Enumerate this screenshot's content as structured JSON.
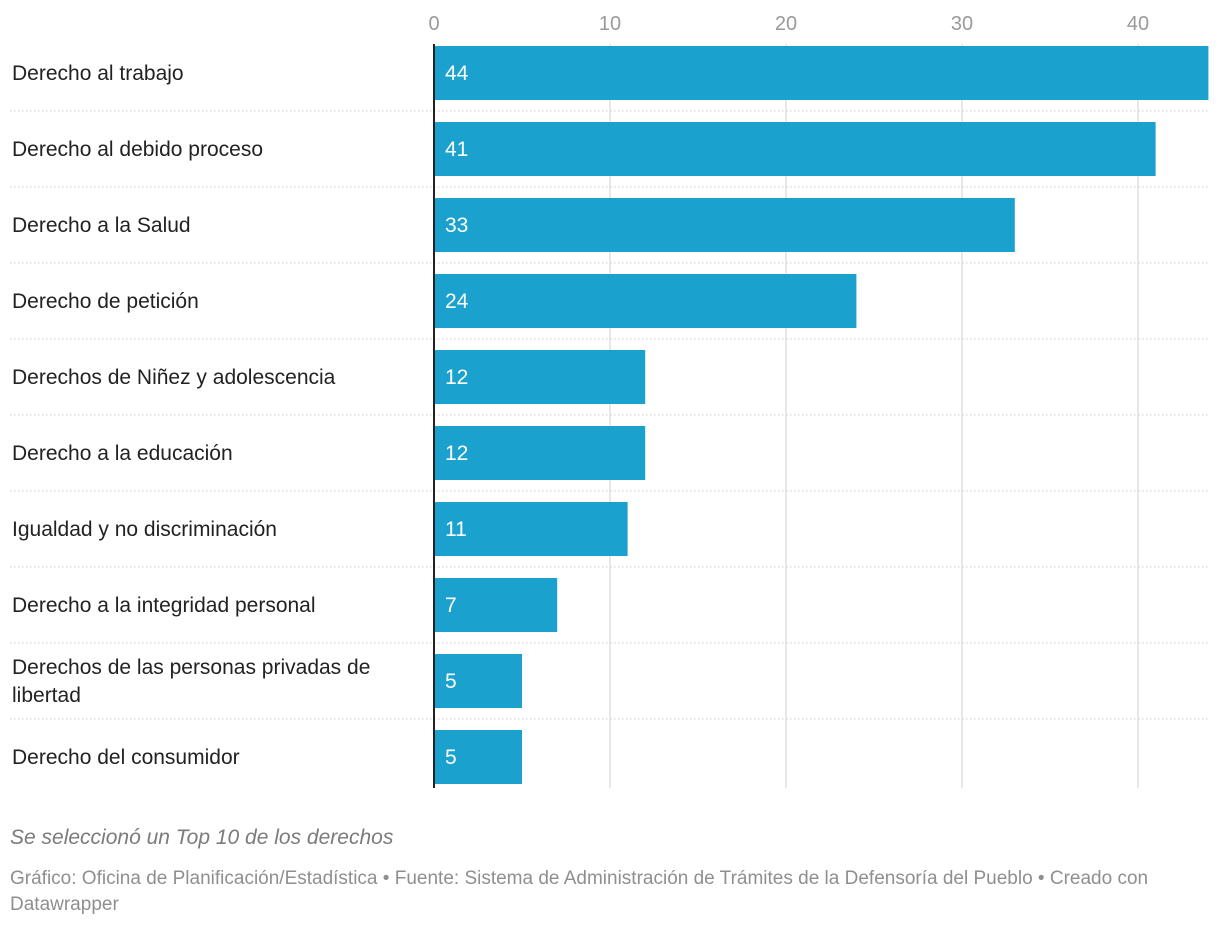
{
  "chart_data": {
    "type": "bar",
    "orientation": "horizontal",
    "categories": [
      "Derecho al trabajo",
      "Derecho al debido proceso",
      "Derecho a la Salud",
      "Derecho de petición",
      "Derechos de Niñez y adolescencia",
      "Derecho a la educación",
      "Igualdad y no discriminación",
      "Derecho a la integridad personal",
      "Derechos de las personas privadas de libertad",
      "Derecho del consumidor"
    ],
    "values": [
      44,
      41,
      33,
      24,
      12,
      12,
      11,
      7,
      5,
      5
    ],
    "x_ticks": [
      "0",
      "10",
      "20",
      "30",
      "40"
    ],
    "xlim": [
      0,
      44
    ],
    "grid": true,
    "bar_color": "#1aa1cd",
    "title": "",
    "xlabel": "",
    "ylabel": ""
  },
  "note": "Se seleccionó un Top 10 de los derechos",
  "footer": {
    "chart_credit": "Gráfico: Oficina de Planificación/Estadística",
    "source": "Fuente: Sistema de Administración de Trámites de la Defensoría del Pueblo",
    "made_with": "Creado con Datawrapper",
    "separator": "•"
  }
}
